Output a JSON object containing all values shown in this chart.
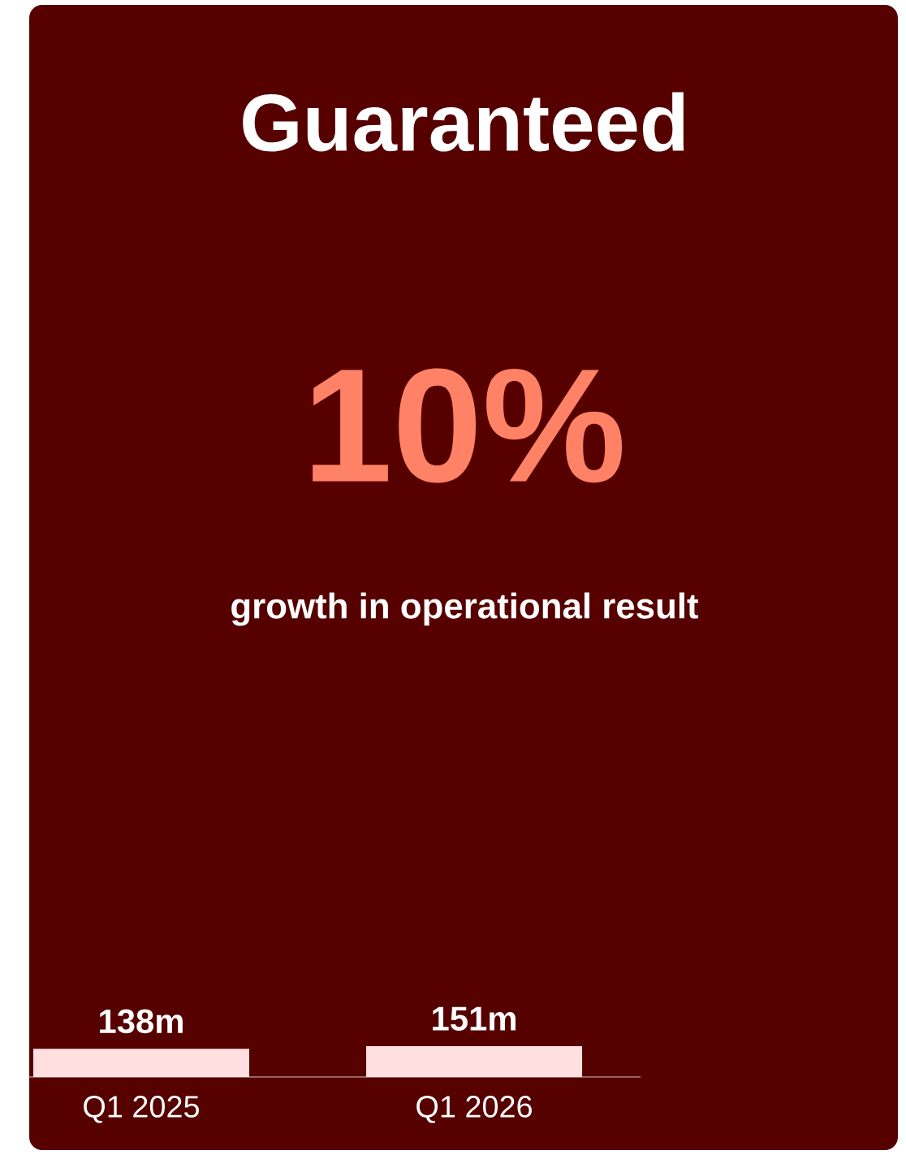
{
  "chart_data": {
    "type": "bar",
    "title": "Guaranteed",
    "annotations": [
      "10%",
      "growth in operational result"
    ],
    "categories": [
      "Q1 2025",
      "Q1 2026"
    ],
    "values": [
      138,
      151
    ],
    "value_labels": [
      "138m",
      "151m"
    ],
    "color": "#ffdfe0"
  }
}
